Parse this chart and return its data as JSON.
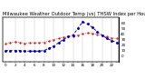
{
  "title": "Milwaukee Weather Outdoor Temp (vs) THSW Index per Hour (Last 24 Hours)",
  "hours": [
    0,
    1,
    2,
    3,
    4,
    5,
    6,
    7,
    8,
    9,
    10,
    11,
    12,
    13,
    14,
    15,
    16,
    17,
    18,
    19,
    20,
    21,
    22,
    23
  ],
  "temp": [
    22,
    24,
    26,
    25,
    23,
    24,
    24,
    24,
    25,
    27,
    30,
    32,
    34,
    35,
    36,
    38,
    40,
    42,
    41,
    39,
    37,
    35,
    33,
    32
  ],
  "thsw": [
    10,
    10,
    10,
    10,
    9,
    9,
    9,
    9,
    10,
    14,
    18,
    24,
    30,
    35,
    38,
    50,
    62,
    58,
    52,
    44,
    38,
    32,
    28,
    25
  ],
  "temp_color": "#dd0000",
  "thsw_color": "#0000cc",
  "bg_color": "#ffffff",
  "grid_color": "#888888",
  "ylim": [
    -10,
    70
  ],
  "yticks": [
    0,
    10,
    20,
    30,
    40,
    50,
    60
  ],
  "title_fontsize": 3.8,
  "tick_fontsize": 3.0,
  "figsize": [
    1.6,
    0.87
  ],
  "dpi": 100
}
